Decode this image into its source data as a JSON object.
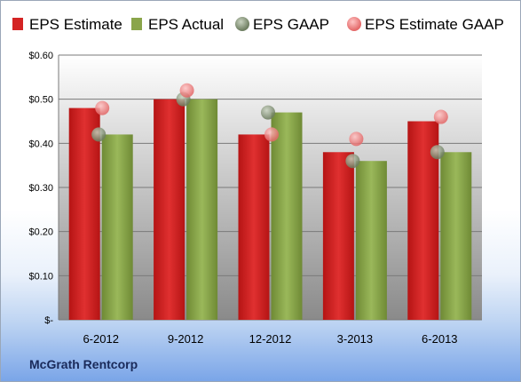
{
  "company": "McGrath Rentcorp",
  "chart_data": {
    "type": "bar",
    "categories": [
      "6-2012",
      "9-2012",
      "12-2012",
      "3-2013",
      "6-2013"
    ],
    "series": [
      {
        "name": "EPS Estimate",
        "kind": "bar",
        "color": "#d42424",
        "values": [
          0.48,
          0.5,
          0.42,
          0.38,
          0.45
        ]
      },
      {
        "name": "EPS Actual",
        "kind": "bar",
        "color": "#8aa54a",
        "values": [
          0.42,
          0.5,
          0.47,
          0.36,
          0.38
        ]
      },
      {
        "name": "EPS GAAP",
        "kind": "marker",
        "color": "#7f9470",
        "values": [
          0.42,
          0.5,
          0.47,
          0.36,
          0.38
        ]
      },
      {
        "name": "EPS Estimate GAAP",
        "kind": "marker",
        "color": "#ef7d7d",
        "values": [
          0.48,
          0.52,
          0.42,
          0.41,
          0.46
        ]
      }
    ],
    "ylim": [
      0,
      0.6
    ],
    "yticks": [
      0,
      0.1,
      0.2,
      0.3,
      0.4,
      0.5,
      0.6
    ],
    "ytick_labels": [
      "$-",
      "$0.10",
      "$0.20",
      "$0.30",
      "$0.40",
      "$0.50",
      "$0.60"
    ],
    "grid": true,
    "legend_position": "top"
  }
}
